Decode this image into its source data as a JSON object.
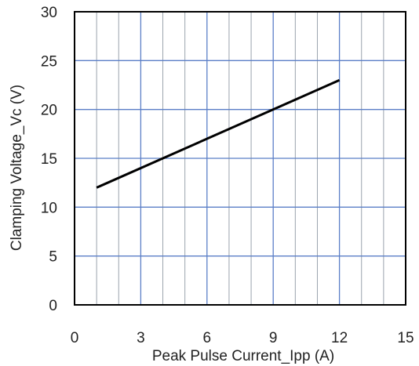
{
  "chart_data": {
    "type": "line",
    "xlabel": "Peak Pulse Current_Ipp  (A)",
    "ylabel": "Clamping Voltage_Vc (V)",
    "xlim": [
      0,
      15
    ],
    "ylim": [
      0,
      30
    ],
    "x_ticks": [
      "0",
      "3",
      "6",
      "9",
      "12",
      "15"
    ],
    "y_ticks": [
      "0",
      "5",
      "10",
      "15",
      "20",
      "25",
      "30"
    ],
    "grid": true,
    "series": [
      {
        "x": [
          1,
          12
        ],
        "y": [
          12,
          23
        ],
        "color": "#000000"
      }
    ],
    "colors": {
      "major_grid": "#5b7fc7",
      "minor_grid": "#9aa3ad",
      "frame": "#000000"
    }
  }
}
